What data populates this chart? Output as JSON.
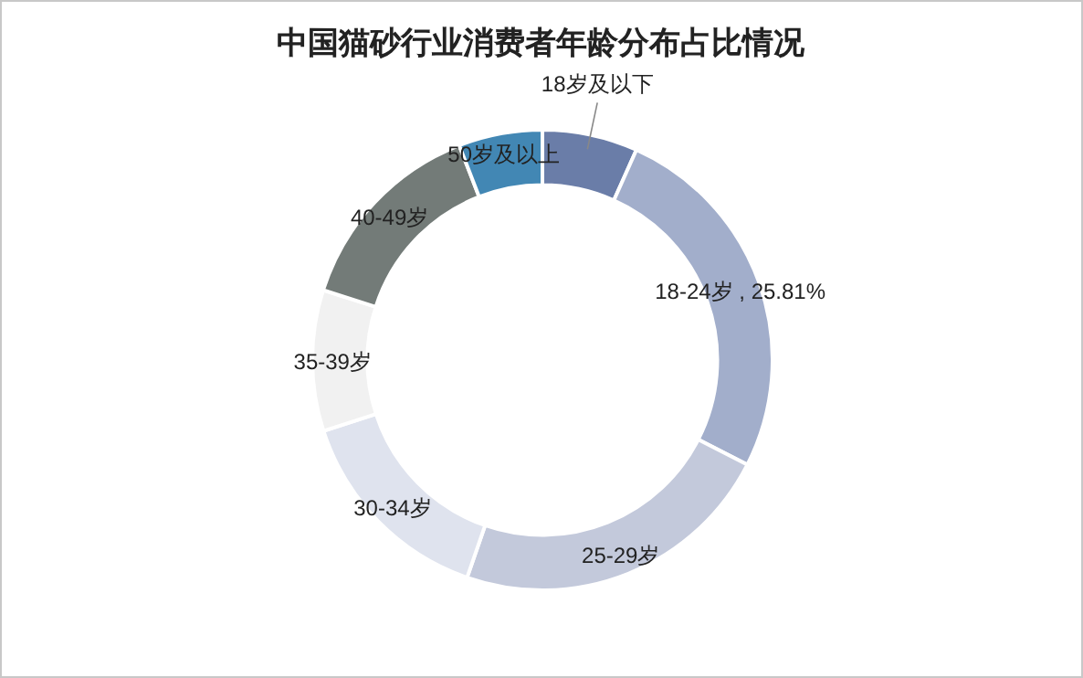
{
  "chart_data": {
    "type": "donut",
    "title": "中国猫砂行业消费者年龄分布占比情况",
    "categories": [
      "18岁及以下",
      "18-24岁",
      "25-29岁",
      "30-34岁",
      "35-39岁",
      "40-49岁",
      "50岁及以上"
    ],
    "values": [
      6.7,
      25.81,
      22.8,
      14.7,
      9.9,
      14.2,
      5.89
    ],
    "colors": [
      "#6a7da8",
      "#a2aecb",
      "#c3c9db",
      "#dfe3ee",
      "#f1f1f1",
      "#737b78",
      "#4287b4"
    ],
    "value_labels": [
      null,
      "25.81%",
      null,
      null,
      null,
      null,
      null
    ]
  }
}
